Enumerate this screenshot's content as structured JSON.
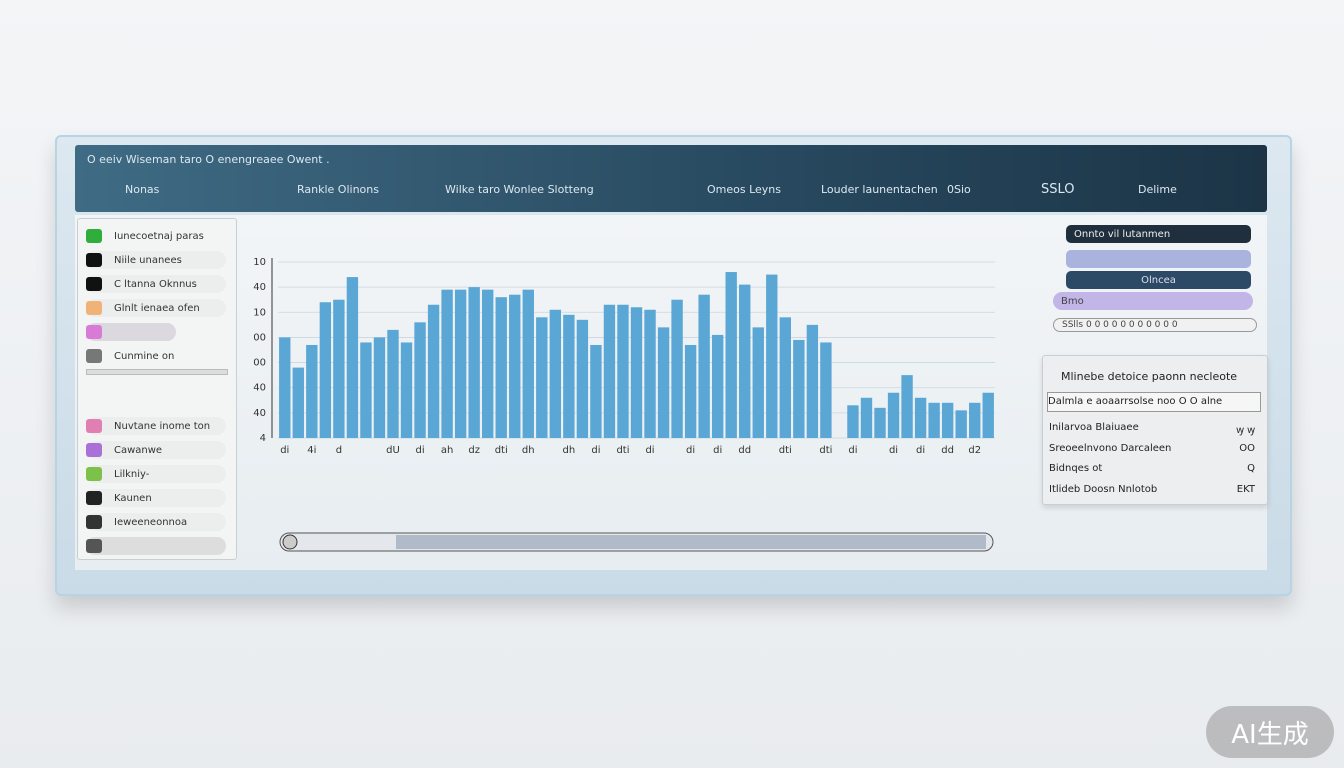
{
  "header": {
    "caption": "O  eeiv  Wiseman taro  O  enengreaee Owent .",
    "nav": [
      "Nonas",
      "Rankle Olinons",
      "Wilke taro  Wonlee Slotteng",
      "Omeos Leyns",
      "Louder launentachen",
      "0Sio",
      "SSLO",
      "Delime"
    ]
  },
  "sidebar": {
    "title": "Iunecoetnaj paras",
    "items": [
      "Niile unanees",
      "C ltanna Oknnus",
      "Glnlt ienaea ofen",
      "Cunmine on"
    ],
    "lower_items": [
      "Nuvtane inome ton",
      "Cawanwe",
      "Lilkniy-",
      "Kaunen",
      "Ieweeneonnoa"
    ]
  },
  "chart_data": {
    "type": "bar",
    "categories": [
      "di",
      null,
      "4i",
      null,
      "d",
      null,
      null,
      null,
      "dU",
      null,
      "di",
      null,
      "ah",
      null,
      "dz",
      null,
      "dti",
      null,
      "dh",
      null,
      null,
      "dh",
      null,
      "di",
      null,
      "dti",
      null,
      "di",
      null,
      null,
      "di",
      null,
      "di",
      null,
      "dd",
      null,
      null,
      "dti",
      null,
      null,
      "dti",
      null,
      "di",
      null,
      null,
      "di",
      null,
      "di",
      null,
      "dd",
      null,
      "d2",
      null
    ],
    "values": [
      4.0,
      2.8,
      3.7,
      5.4,
      5.5,
      6.4,
      3.8,
      4.0,
      4.3,
      3.8,
      4.6,
      5.3,
      5.9,
      5.9,
      6.0,
      5.9,
      5.6,
      5.7,
      5.9,
      4.8,
      5.1,
      4.9,
      4.7,
      3.7,
      5.3,
      5.3,
      5.2,
      5.1,
      4.4,
      5.5,
      3.7,
      5.7,
      4.1,
      6.6,
      6.1,
      4.4,
      6.5,
      4.8,
      3.9,
      4.5,
      3.8,
      0,
      1.3,
      1.6,
      1.2,
      1.8,
      2.5,
      1.6,
      1.4,
      1.4,
      1.1,
      1.4,
      1.8
    ],
    "color": "#5aa6d4",
    "ylim": [
      0,
      7
    ],
    "yticks": [
      {
        "value": 0,
        "label": "4"
      },
      {
        "value": 1,
        "label": "40"
      },
      {
        "value": 2,
        "label": "40"
      },
      {
        "value": 3,
        "label": "00"
      },
      {
        "value": 4,
        "label": "00"
      },
      {
        "value": 5,
        "label": "10"
      },
      {
        "value": 6,
        "label": "40"
      },
      {
        "value": 7,
        "label": "10"
      }
    ],
    "grid": true
  },
  "right_panel": {
    "pills": [
      "Onnto  vil lutanmen",
      "Olncea",
      "Bmo",
      "SSlls 0 0 0 0 0 0 0 0 0 0 0"
    ],
    "card": {
      "title": "Mlinebe detoice paonn necleote",
      "subtitle": "Dalmla e aoaarrsolse noo  O O alne",
      "rows": [
        [
          "Inilarvoa Blaiuaee",
          "ꝡ ꝡ"
        ],
        [
          "Sreoeelnvono  Darcaleen",
          "OO"
        ],
        [
          "Bidnqes ot",
          "Q"
        ],
        [
          "Itlideb  Doosn  Nnlotob",
          "EKT"
        ]
      ]
    }
  },
  "watermark": "AI生成"
}
